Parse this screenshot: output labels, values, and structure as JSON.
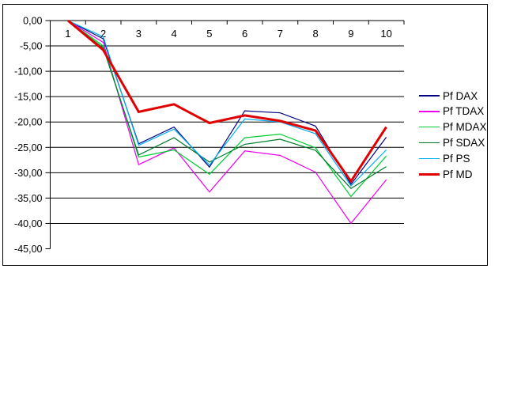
{
  "chart_data": {
    "type": "line",
    "title": "",
    "xlabel": "",
    "ylabel": "",
    "categories": [
      "1",
      "2",
      "3",
      "4",
      "5",
      "6",
      "7",
      "8",
      "9",
      "10"
    ],
    "y_tick_labels": [
      "0,00",
      "-5,00",
      "-10,00",
      "-15,00",
      "-20,00",
      "-25,00",
      "-30,00",
      "-35,00",
      "-40,00",
      "-45,00"
    ],
    "ylim": [
      -45,
      0
    ],
    "y_major_unit": 5,
    "grid": true,
    "legend_position": "right",
    "series": [
      {
        "name": "Pf DAX",
        "color": "#000080",
        "stroke_width": 1.2,
        "values": [
          0.0,
          -3.6,
          -24.3,
          -21.0,
          -28.9,
          -17.8,
          -18.2,
          -20.8,
          -32.3,
          -23.0
        ]
      },
      {
        "name": "Pf TDAX",
        "color": "#F000F0",
        "stroke_width": 1.2,
        "values": [
          0.0,
          -4.3,
          -28.4,
          -25.1,
          -33.8,
          -25.7,
          -26.6,
          -29.9,
          -40.0,
          -31.4
        ]
      },
      {
        "name": "Pf MDAX",
        "color": "#00CC33",
        "stroke_width": 1.2,
        "values": [
          0.0,
          -5.0,
          -26.9,
          -25.5,
          -30.3,
          -23.1,
          -22.4,
          -25.1,
          -34.7,
          -26.7
        ]
      },
      {
        "name": "Pf SDAX",
        "color": "#007A29",
        "stroke_width": 1.2,
        "values": [
          0.0,
          -5.4,
          -26.5,
          -23.1,
          -27.9,
          -24.4,
          -23.4,
          -25.6,
          -33.1,
          -28.8
        ]
      },
      {
        "name": "Pf PS",
        "color": "#00AEEF",
        "stroke_width": 1.2,
        "values": [
          0.0,
          -3.2,
          -24.6,
          -21.4,
          -28.5,
          -19.4,
          -20.0,
          -22.3,
          -32.6,
          -25.5
        ]
      },
      {
        "name": "Pf MD",
        "color": "#E00000",
        "stroke_width": 3,
        "values": [
          0.0,
          -5.8,
          -18.0,
          -16.5,
          -20.2,
          -18.7,
          -19.8,
          -21.7,
          -31.7,
          -21.0
        ]
      }
    ],
    "axis_color": "#000000",
    "grid_color": "#000000",
    "background_color": "#FFFFFF",
    "frame_border_color": "#000000"
  }
}
